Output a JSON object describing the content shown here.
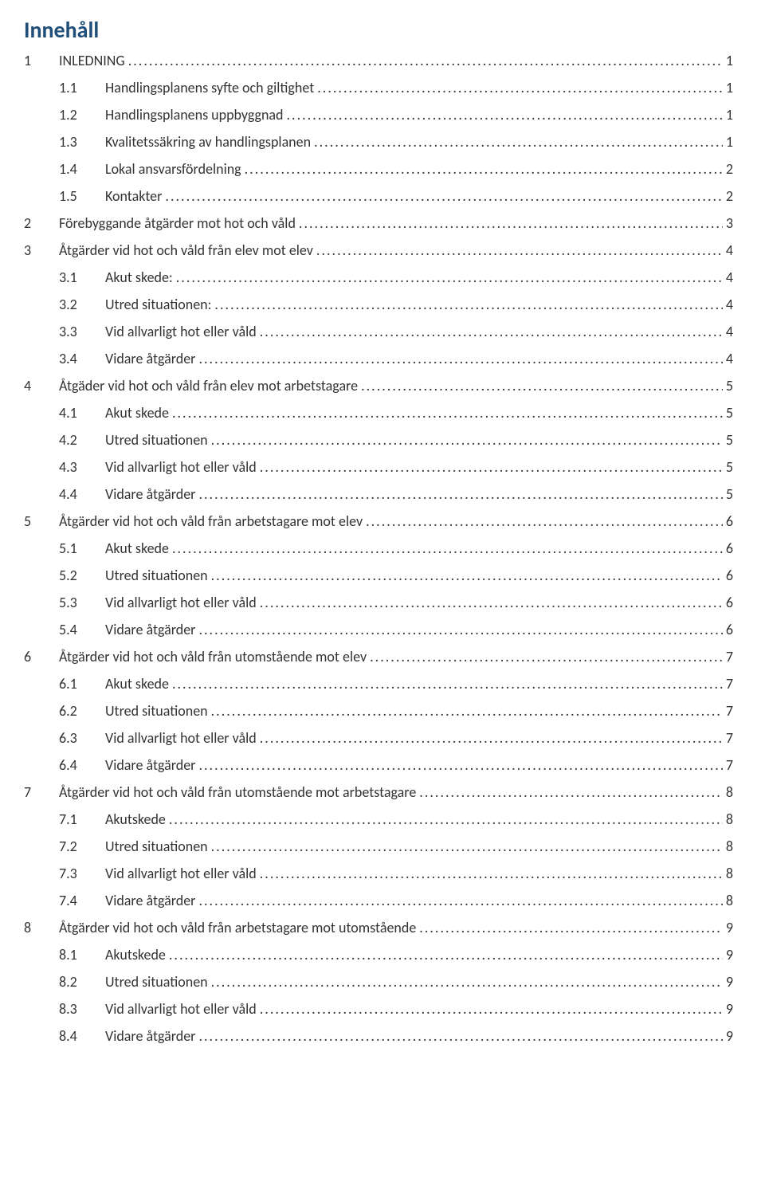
{
  "heading": "Innehåll",
  "colors": {
    "heading": "#1f4e79",
    "text": "#333333",
    "background": "#ffffff"
  },
  "typography": {
    "heading_fontsize_pt": 21,
    "body_fontsize_pt": 14,
    "font_family": "Calibri"
  },
  "toc": [
    {
      "level": 1,
      "num": "1",
      "title": "INLEDNING",
      "page": "1"
    },
    {
      "level": 2,
      "num": "1.1",
      "title": "Handlingsplanens syfte och giltighet",
      "page": "1"
    },
    {
      "level": 2,
      "num": "1.2",
      "title": "Handlingsplanens uppbyggnad",
      "page": "1"
    },
    {
      "level": 2,
      "num": "1.3",
      "title": "Kvalitetssäkring av handlingsplanen",
      "page": "1"
    },
    {
      "level": 2,
      "num": "1.4",
      "title": "Lokal ansvarsfördelning",
      "page": "2"
    },
    {
      "level": 2,
      "num": "1.5",
      "title": "Kontakter",
      "page": "2"
    },
    {
      "level": 1,
      "num": "2",
      "title": "Förebyggande åtgärder mot hot och våld",
      "page": "3"
    },
    {
      "level": 1,
      "num": "3",
      "title": "Åtgärder vid hot och våld från elev mot elev",
      "page": "4"
    },
    {
      "level": 2,
      "num": "3.1",
      "title": "Akut skede:",
      "page": "4"
    },
    {
      "level": 2,
      "num": "3.2",
      "title": "Utred situationen:",
      "page": "4"
    },
    {
      "level": 2,
      "num": "3.3",
      "title": "Vid allvarligt hot eller våld",
      "page": "4"
    },
    {
      "level": 2,
      "num": "3.4",
      "title": "Vidare åtgärder",
      "page": "4"
    },
    {
      "level": 1,
      "num": "4",
      "title": "Åtgäder vid hot och våld från elev mot arbetstagare",
      "page": "5"
    },
    {
      "level": 2,
      "num": "4.1",
      "title": "Akut skede",
      "page": "5"
    },
    {
      "level": 2,
      "num": "4.2",
      "title": "Utred situationen",
      "page": "5"
    },
    {
      "level": 2,
      "num": "4.3",
      "title": "Vid allvarligt hot eller våld",
      "page": "5"
    },
    {
      "level": 2,
      "num": "4.4",
      "title": "Vidare åtgärder",
      "page": "5"
    },
    {
      "level": 1,
      "num": "5",
      "title": "Åtgärder vid hot och våld från arbetstagare mot elev",
      "page": "6"
    },
    {
      "level": 2,
      "num": "5.1",
      "title": "Akut skede",
      "page": "6"
    },
    {
      "level": 2,
      "num": "5.2",
      "title": "Utred situationen",
      "page": "6"
    },
    {
      "level": 2,
      "num": "5.3",
      "title": "Vid allvarligt hot eller våld",
      "page": "6"
    },
    {
      "level": 2,
      "num": "5.4",
      "title": "Vidare åtgärder",
      "page": "6"
    },
    {
      "level": 1,
      "num": "6",
      "title": "Åtgärder vid hot och våld från utomstående mot elev",
      "page": "7"
    },
    {
      "level": 2,
      "num": "6.1",
      "title": "Akut skede",
      "page": "7"
    },
    {
      "level": 2,
      "num": "6.2",
      "title": "Utred situationen",
      "page": "7"
    },
    {
      "level": 2,
      "num": "6.3",
      "title": "Vid allvarligt hot eller våld",
      "page": "7"
    },
    {
      "level": 2,
      "num": "6.4",
      "title": "Vidare åtgärder",
      "page": "7"
    },
    {
      "level": 1,
      "num": "7",
      "title": "Åtgärder vid hot och våld från utomstående mot arbetstagare",
      "page": "8"
    },
    {
      "level": 2,
      "num": "7.1",
      "title": "Akutskede",
      "page": "8"
    },
    {
      "level": 2,
      "num": "7.2",
      "title": "Utred situationen",
      "page": "8"
    },
    {
      "level": 2,
      "num": "7.3",
      "title": "Vid allvarligt hot eller våld",
      "page": "8"
    },
    {
      "level": 2,
      "num": "7.4",
      "title": "Vidare åtgärder",
      "page": "8"
    },
    {
      "level": 1,
      "num": "8",
      "title": "Åtgärder vid hot och våld från arbetstagare mot utomstående",
      "page": "9"
    },
    {
      "level": 2,
      "num": "8.1",
      "title": "Akutskede",
      "page": "9"
    },
    {
      "level": 2,
      "num": "8.2",
      "title": "Utred situationen",
      "page": "9"
    },
    {
      "level": 2,
      "num": "8.3",
      "title": "Vid allvarligt hot eller våld",
      "page": "9"
    },
    {
      "level": 2,
      "num": "8.4",
      "title": "Vidare åtgärder",
      "page": "9"
    }
  ]
}
